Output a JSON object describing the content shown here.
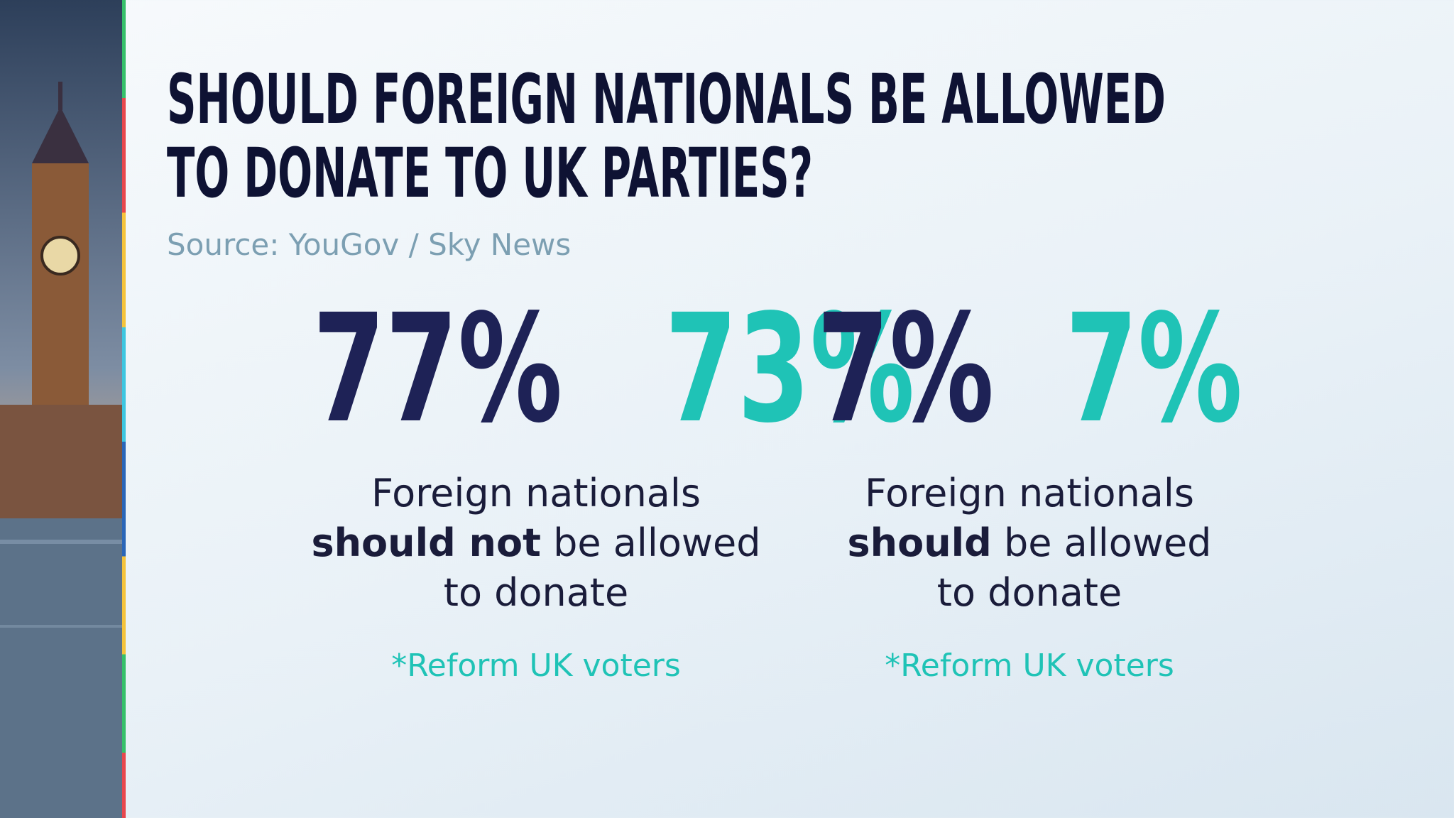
{
  "header": {
    "title_lines": [
      "SHOULD FOREIGN NATIONALS BE ALLOWED",
      "TO DONATE TO UK PARTIES?"
    ],
    "source": "Source: YouGov / Sky News"
  },
  "panels": [
    {
      "stats": [
        "77%",
        "73%"
      ],
      "lines": [
        [
          {
            "text": "Foreign nationals",
            "bold": false
          }
        ],
        [
          {
            "text": "should not",
            "bold": true
          },
          {
            "text": " be allowed",
            "bold": false
          }
        ],
        [
          {
            "text": "to donate",
            "bold": false
          }
        ]
      ],
      "note": "*Reform UK voters"
    },
    {
      "stats": [
        "7%",
        "7%"
      ],
      "lines": [
        [
          {
            "text": "Foreign nationals",
            "bold": false
          }
        ],
        [
          {
            "text": "should",
            "bold": true
          },
          {
            "text": " be allowed",
            "bold": false
          }
        ],
        [
          {
            "text": "to donate",
            "bold": false
          }
        ]
      ],
      "note": "*Reform UK voters"
    }
  ]
}
